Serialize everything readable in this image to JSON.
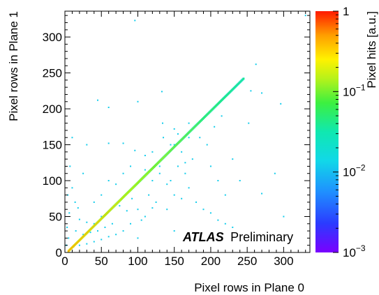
{
  "chart_data": {
    "type": "heatmap",
    "title": "",
    "xlabel": "Pixel rows in Plane 0",
    "ylabel": "Pixel rows in Plane 1",
    "zlabel": "Pixel hits [a.u.]",
    "xlim": [
      0,
      336
    ],
    "ylim": [
      0,
      336
    ],
    "zlim": [
      0.001,
      1
    ],
    "zscale": "log",
    "grid": false,
    "x_ticks": [
      "0",
      "50",
      "100",
      "150",
      "200",
      "250",
      "300"
    ],
    "y_ticks": [
      "0",
      "50",
      "100",
      "150",
      "200",
      "250",
      "300"
    ],
    "z_ticks": [
      {
        "base": "1",
        "exp": ""
      },
      {
        "base": "10",
        "exp": "−1"
      },
      {
        "base": "10",
        "exp": "−2"
      },
      {
        "base": "10",
        "exp": "−3"
      }
    ],
    "annotation": {
      "bold": "ATLAS",
      "text": "Preliminary"
    },
    "correlation_band": {
      "x_start": 5,
      "x_end": 245,
      "offset_y": -3,
      "density_start": 0.6,
      "density_end": 0.05
    },
    "noise_points": [
      [
        96,
        323
      ],
      [
        262,
        262
      ],
      [
        270,
        222
      ],
      [
        255,
        225
      ],
      [
        296,
        207
      ],
      [
        133,
        224
      ],
      [
        134,
        180
      ],
      [
        45,
        212
      ],
      [
        60,
        202
      ],
      [
        100,
        210
      ],
      [
        150,
        172
      ],
      [
        170,
        160
      ],
      [
        252,
        180
      ],
      [
        288,
        110
      ],
      [
        270,
        82
      ],
      [
        80,
        152
      ],
      [
        60,
        152
      ],
      [
        30,
        150
      ],
      [
        25,
        110
      ],
      [
        10,
        90
      ],
      [
        14,
        70
      ],
      [
        18,
        62
      ],
      [
        20,
        46
      ],
      [
        30,
        42
      ],
      [
        40,
        40
      ],
      [
        50,
        50
      ],
      [
        58,
        55
      ],
      [
        40,
        70
      ],
      [
        50,
        80
      ],
      [
        60,
        100
      ],
      [
        70,
        95
      ],
      [
        80,
        110
      ],
      [
        90,
        120
      ],
      [
        96,
        142
      ],
      [
        110,
        135
      ],
      [
        120,
        140
      ],
      [
        130,
        120
      ],
      [
        140,
        95
      ],
      [
        150,
        80
      ],
      [
        160,
        75
      ],
      [
        170,
        90
      ],
      [
        180,
        70
      ],
      [
        190,
        60
      ],
      [
        200,
        55
      ],
      [
        210,
        45
      ],
      [
        220,
        40
      ],
      [
        230,
        35
      ],
      [
        160,
        140
      ],
      [
        140,
        60
      ],
      [
        120,
        62
      ],
      [
        110,
        50
      ],
      [
        105,
        45
      ],
      [
        90,
        40
      ],
      [
        80,
        30
      ],
      [
        70,
        25
      ],
      [
        60,
        22
      ],
      [
        50,
        18
      ],
      [
        40,
        15
      ],
      [
        30,
        12
      ],
      [
        20,
        10
      ],
      [
        12,
        8
      ],
      [
        5,
        20
      ],
      [
        3,
        35
      ],
      [
        6,
        55
      ],
      [
        4,
        80
      ],
      [
        7,
        120
      ],
      [
        120,
        100
      ],
      [
        130,
        110
      ],
      [
        115,
        80
      ],
      [
        125,
        70
      ],
      [
        145,
        100
      ],
      [
        155,
        120
      ],
      [
        165,
        110
      ],
      [
        175,
        130
      ],
      [
        135,
        160
      ],
      [
        145,
        150
      ],
      [
        185,
        160
      ],
      [
        195,
        150
      ],
      [
        205,
        175
      ],
      [
        215,
        190
      ],
      [
        100,
        60
      ],
      [
        92,
        75
      ],
      [
        85,
        58
      ],
      [
        75,
        65
      ],
      [
        65,
        40
      ],
      [
        55,
        35
      ],
      [
        45,
        30
      ],
      [
        35,
        28
      ],
      [
        25,
        25
      ],
      [
        100,
        20
      ],
      [
        150,
        30
      ],
      [
        180,
        20
      ],
      [
        150,
        150
      ],
      [
        155,
        165
      ],
      [
        165,
        125
      ],
      [
        170,
        180
      ],
      [
        110,
        115
      ],
      [
        300,
        50
      ],
      [
        320,
        30
      ],
      [
        10,
        160
      ],
      [
        15,
        30
      ],
      [
        2,
        10
      ],
      [
        8,
        5
      ],
      [
        330,
        330
      ],
      [
        200,
        120
      ],
      [
        210,
        100
      ],
      [
        220,
        80
      ],
      [
        240,
        100
      ],
      [
        230,
        130
      ]
    ]
  }
}
